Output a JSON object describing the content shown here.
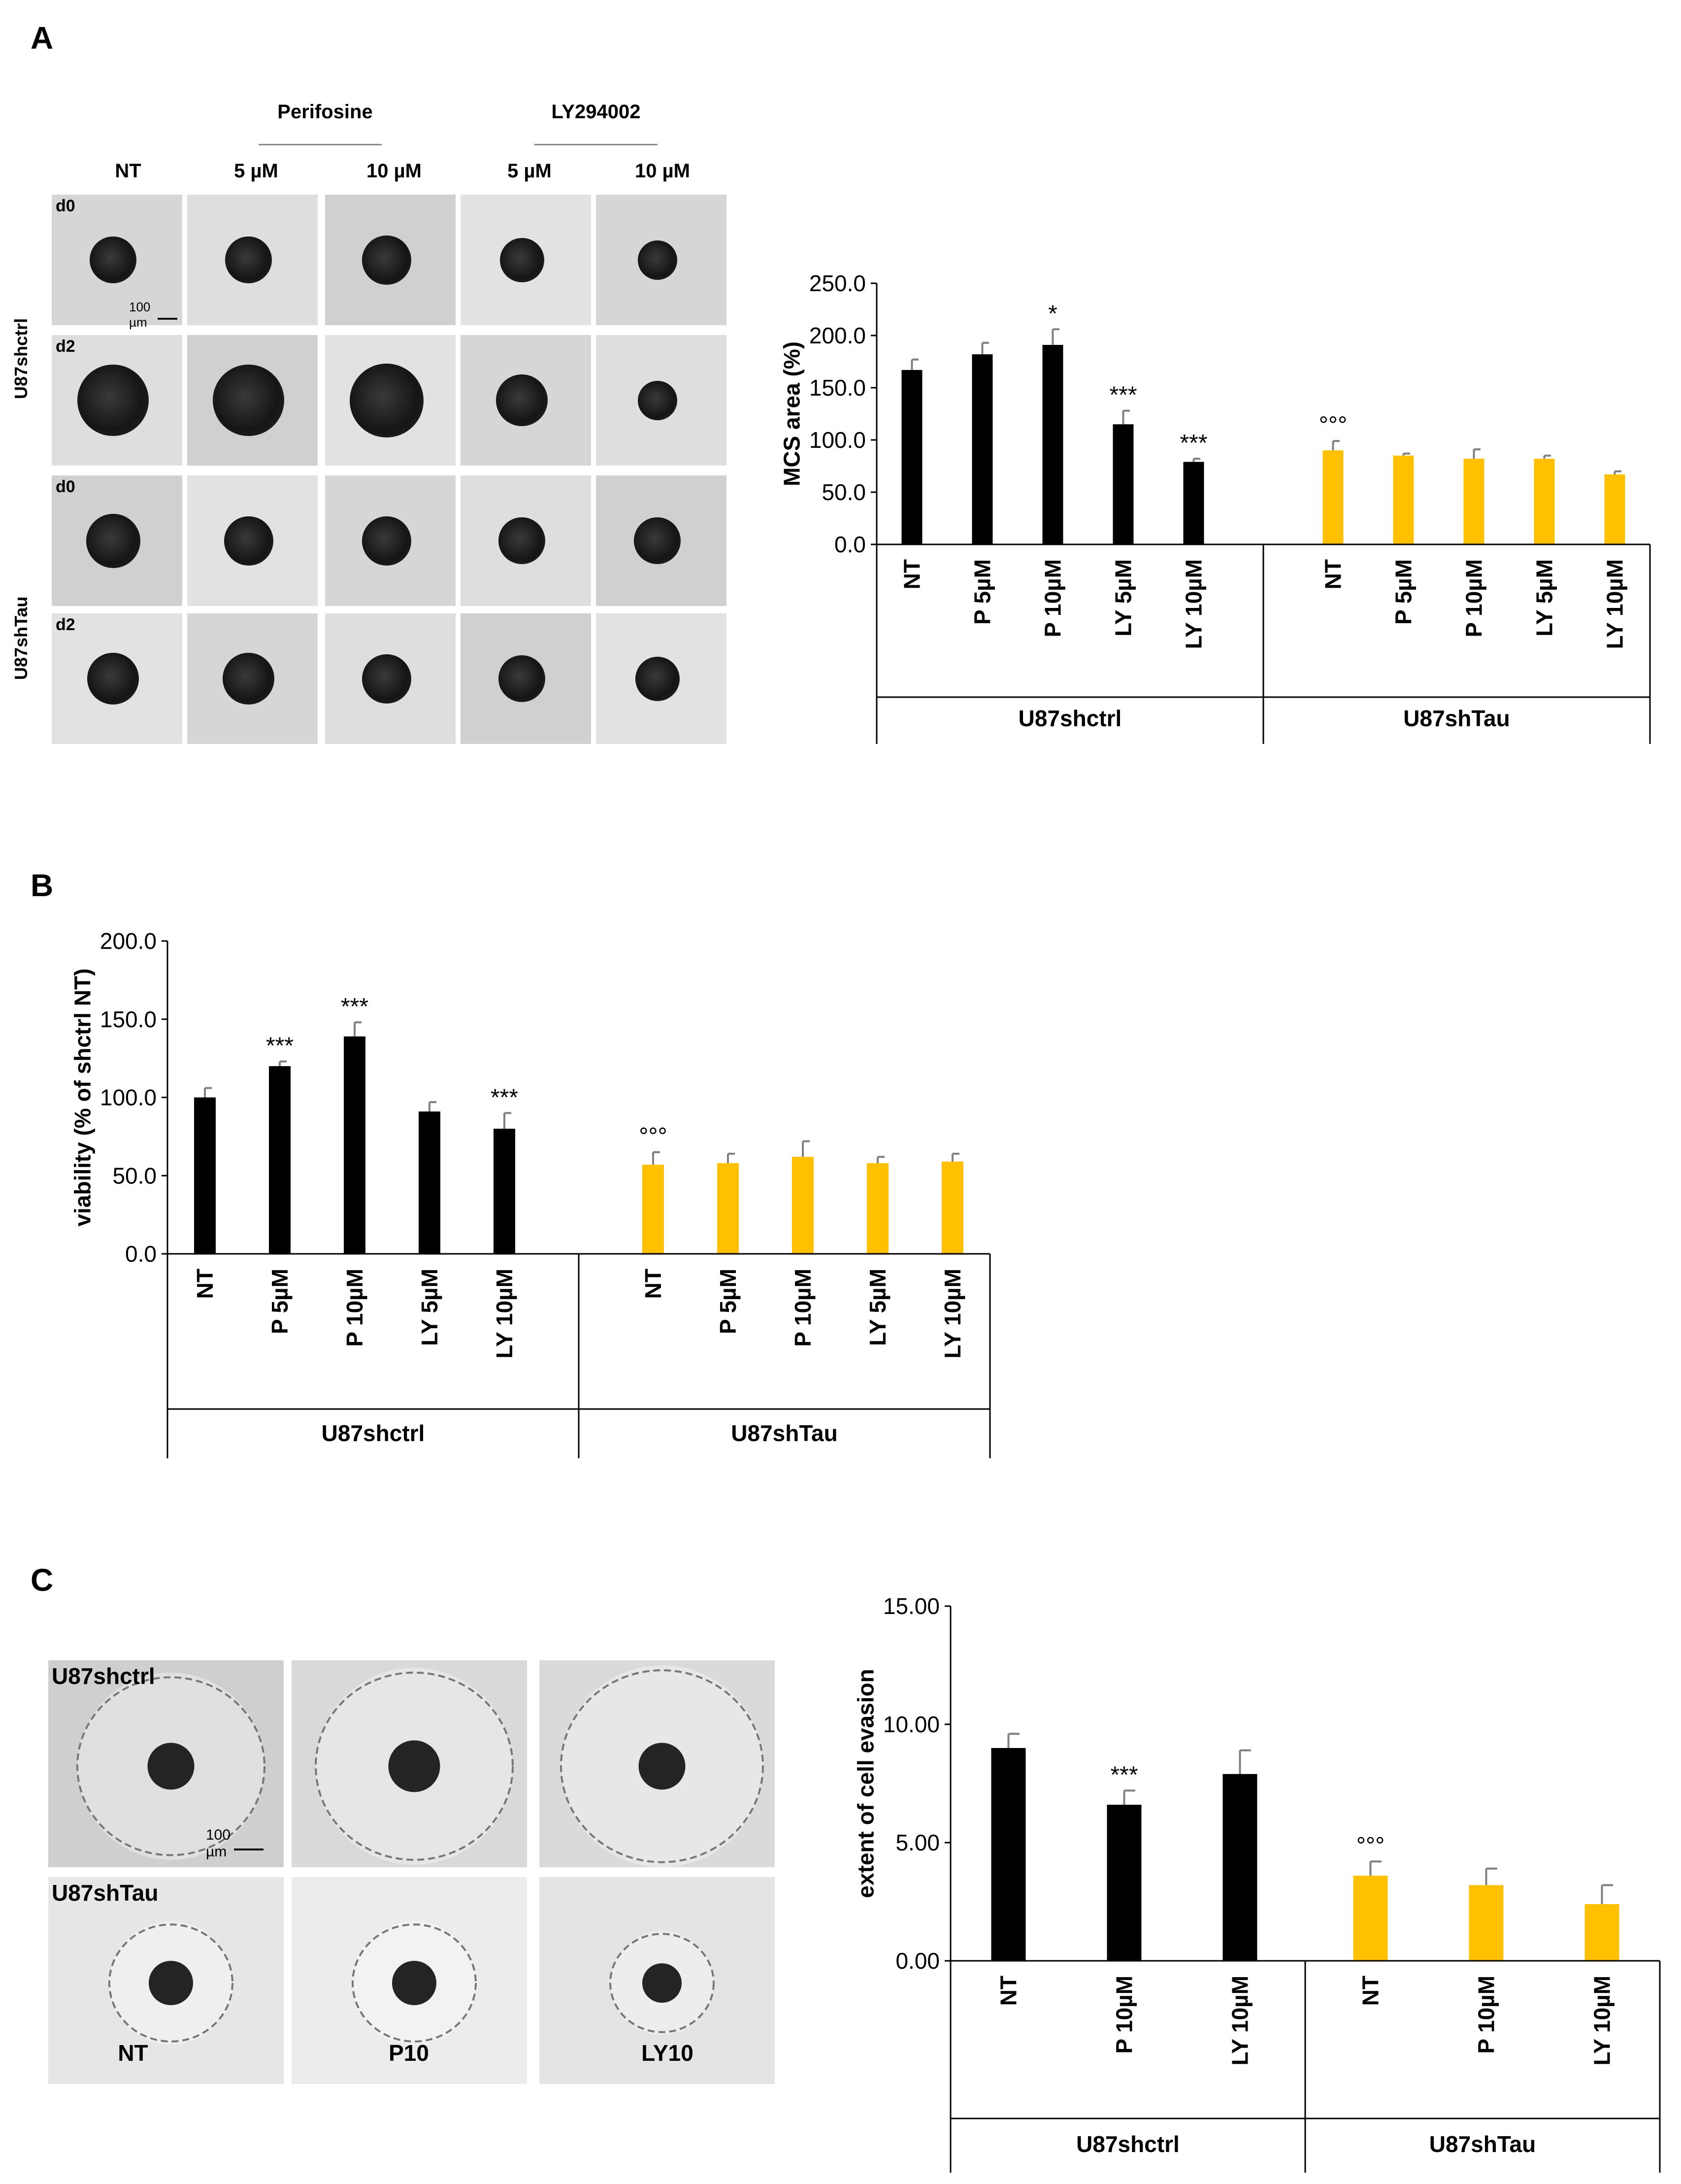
{
  "panels": {
    "A": {
      "letter": "A",
      "micrographs": {
        "group_headers": [
          "Perifosine",
          "LY294002"
        ],
        "column_headers": [
          "NT",
          "5 µM",
          "10 µM",
          "5 µM",
          "10 µM"
        ],
        "row_groups": [
          "U87shctrl",
          "U87shTau"
        ],
        "day_labels": [
          "d0",
          "d2",
          "d0",
          "d2"
        ],
        "scale_bar": "100 µm"
      }
    },
    "B": {
      "letter": "B"
    },
    "C": {
      "letter": "C",
      "micrographs": {
        "row_labels": [
          "U87shctrl",
          "U87shTau"
        ],
        "column_labels": [
          "NT",
          "P10",
          "LY10"
        ],
        "scale_bar": "100 µm"
      }
    }
  },
  "colors": {
    "shctrl": "#000000",
    "shTau": "#ffc000",
    "error_bar": "#7f7f7f"
  },
  "chart_data": [
    {
      "id": "A",
      "type": "bar",
      "ylabel": "MCS area (%)",
      "ylim": [
        0,
        250
      ],
      "yticks": [
        "0.0",
        "50.0",
        "100.0",
        "150.0",
        "200.0",
        "250.0"
      ],
      "categories": [
        "NT",
        "P 5µM",
        "P 10µM",
        "LY 5µM",
        "LY 10µM",
        "NT",
        "P 5µM",
        "P 10µM",
        "LY 5µM",
        "LY 10µM"
      ],
      "groups": [
        "U87shctrl",
        "U87shTau"
      ],
      "values": [
        167,
        182,
        191,
        115,
        79,
        90,
        85,
        82,
        82,
        67
      ],
      "errors": [
        10,
        11,
        15,
        13,
        3,
        9,
        2,
        9,
        3,
        3
      ],
      "annotations": [
        "",
        "",
        "*",
        "***",
        "***",
        "°°°",
        "",
        "",
        "",
        ""
      ],
      "grid": false
    },
    {
      "id": "B",
      "type": "bar",
      "ylabel": "viability (% of shctrl NT)",
      "ylim": [
        0,
        200
      ],
      "yticks": [
        "0.0",
        "50.0",
        "100.0",
        "150.0",
        "200.0"
      ],
      "categories": [
        "NT",
        "P 5µM",
        "P 10µM",
        "LY 5µM",
        "LY 10µM",
        "NT",
        "P 5µM",
        "P 10µM",
        "LY 5µM",
        "LY 10µM"
      ],
      "groups": [
        "U87shctrl",
        "U87shTau"
      ],
      "values": [
        100,
        120,
        139,
        91,
        80,
        57,
        58,
        62,
        58,
        59
      ],
      "errors": [
        6,
        3,
        9,
        6,
        10,
        8,
        6,
        10,
        4,
        5
      ],
      "annotations": [
        "",
        "***",
        "***",
        "",
        "***",
        "°°°",
        "",
        "",
        "",
        ""
      ],
      "grid": false
    },
    {
      "id": "C",
      "type": "bar",
      "ylabel": "extent of cell evasion",
      "ylim": [
        0,
        15
      ],
      "yticks": [
        "0.00",
        "5.00",
        "10.00",
        "15.00"
      ],
      "categories": [
        "NT",
        "P 10µM",
        "LY 10µM",
        "NT",
        "P 10µM",
        "LY 10µM"
      ],
      "groups": [
        "U87shctrl",
        "U87shTau"
      ],
      "values": [
        9.0,
        6.6,
        7.9,
        3.6,
        3.2,
        2.4
      ],
      "errors": [
        0.6,
        0.6,
        1.0,
        0.6,
        0.7,
        0.8
      ],
      "annotations": [
        "",
        "***",
        "",
        "°°°",
        "",
        ""
      ],
      "grid": false
    }
  ]
}
